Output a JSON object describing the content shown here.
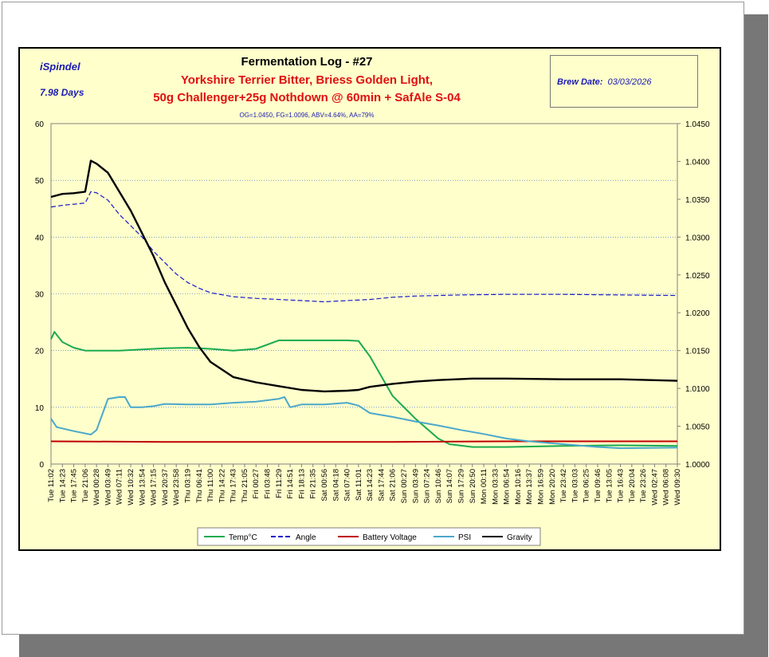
{
  "header": {
    "device": "iSpindel",
    "duration": "7.98 Days",
    "log_title": "Fermentation Log - #27",
    "beer_line1": "Yorkshire Terrier Bitter, Briess Golden Light,",
    "beer_line2": "50g Challenger+25g Nothdown @ 60min + SafAle S-04",
    "stats": "OG=1.0450,  FG=1.0096,  ABV=4.64%,  AA=79%",
    "brew_date_label": "Brew Date:",
    "brew_date_value": "03/03/2026"
  },
  "chart_data": {
    "type": "line",
    "x_labels": [
      "Tue 11:02",
      "Tue 14:23",
      "Tue 17:45",
      "Tue 21:06",
      "Wed 00:28",
      "Wed 03:49",
      "Wed 07:11",
      "Wed 10:32",
      "Wed 13:54",
      "Wed 17:15",
      "Wed 20:37",
      "Wed 23:58",
      "Thu 03:19",
      "Thu 06:41",
      "Thu 11:00",
      "Thu 14:22",
      "Thu 17:43",
      "Thu 21:05",
      "Fri 00:27",
      "Fri 03:48",
      "Fri 11:29",
      "Fri 14:51",
      "Fri 18:13",
      "Fri 21:35",
      "Sat 00:56",
      "Sat 04:18",
      "Sat 07:40",
      "Sat 11:01",
      "Sat 14:23",
      "Sat 17:44",
      "Sat 21:06",
      "Sun 00:27",
      "Sun 03:49",
      "Sun 07:24",
      "Sun 10:46",
      "Sun 14:07",
      "Sun 17:29",
      "Sun 20:50",
      "Mon 00:11",
      "Mon 03:33",
      "Mon 06:54",
      "Mon 10:16",
      "Mon 13:37",
      "Mon 16:59",
      "Mon 20:20",
      "Tue 23:42",
      "Tue 03:03",
      "Tue 06:25",
      "Tue 09:46",
      "Tue 13:05",
      "Tue 16:43",
      "Tue 20:04",
      "Tue 23:26",
      "Wed 02:47",
      "Wed 06:08",
      "Wed 09:30"
    ],
    "y_left": {
      "min": 0,
      "max": 60,
      "ticks": [
        0,
        10,
        20,
        30,
        40,
        50,
        60
      ]
    },
    "y_right": {
      "min": 1.0,
      "max": 1.045,
      "ticks": [
        "1.0000",
        "1.0050",
        "1.0100",
        "1.0150",
        "1.0200",
        "1.0250",
        "1.0300",
        "1.0350",
        "1.0400",
        "1.0450"
      ]
    },
    "grid": "horizontal dotted",
    "legend_position": "bottom",
    "series": [
      {
        "name": "Temp°C",
        "axis": "left",
        "color": "#1aaa50",
        "style": "solid",
        "points": [
          [
            0,
            22
          ],
          [
            0.3,
            23.3
          ],
          [
            1,
            21.5
          ],
          [
            2,
            20.5
          ],
          [
            3,
            20
          ],
          [
            5,
            20
          ],
          [
            6,
            20
          ],
          [
            8,
            20.2
          ],
          [
            10,
            20.4
          ],
          [
            12,
            20.5
          ],
          [
            14,
            20.3
          ],
          [
            16,
            20
          ],
          [
            18,
            20.3
          ],
          [
            20,
            21.8
          ],
          [
            22,
            21.8
          ],
          [
            24,
            21.8
          ],
          [
            26,
            21.8
          ],
          [
            27,
            21.7
          ],
          [
            28,
            19
          ],
          [
            29,
            15.5
          ],
          [
            30,
            12
          ],
          [
            32,
            8
          ],
          [
            34,
            4.5
          ],
          [
            35,
            3.5
          ],
          [
            37,
            3
          ],
          [
            40,
            3
          ],
          [
            45,
            3.2
          ],
          [
            50,
            3.3
          ],
          [
            55,
            3.2
          ]
        ]
      },
      {
        "name": "Angle",
        "axis": "left",
        "color": "#1a1acc",
        "style": "dashed",
        "points": [
          [
            0,
            45.3
          ],
          [
            1,
            45.6
          ],
          [
            2,
            45.8
          ],
          [
            3,
            46
          ],
          [
            3.5,
            48
          ],
          [
            4,
            47.8
          ],
          [
            5,
            46.5
          ],
          [
            6,
            44
          ],
          [
            7,
            42
          ],
          [
            8,
            40
          ],
          [
            9,
            37.5
          ],
          [
            10,
            35.5
          ],
          [
            11,
            33.5
          ],
          [
            12,
            32
          ],
          [
            13,
            31
          ],
          [
            14,
            30.2
          ],
          [
            16,
            29.5
          ],
          [
            18,
            29.2
          ],
          [
            20,
            29
          ],
          [
            22,
            28.8
          ],
          [
            24,
            28.6
          ],
          [
            26,
            28.8
          ],
          [
            28,
            29
          ],
          [
            30,
            29.4
          ],
          [
            32,
            29.6
          ],
          [
            36,
            29.8
          ],
          [
            40,
            29.9
          ],
          [
            45,
            29.9
          ],
          [
            50,
            29.8
          ],
          [
            55,
            29.7
          ]
        ]
      },
      {
        "name": "Battery Voltage",
        "axis": "left",
        "color": "#c00000",
        "style": "solid",
        "points": [
          [
            0,
            4
          ],
          [
            10,
            3.9
          ],
          [
            20,
            3.9
          ],
          [
            30,
            3.9
          ],
          [
            40,
            4
          ],
          [
            50,
            4
          ],
          [
            55,
            4
          ]
        ]
      },
      {
        "name": "PSI",
        "axis": "left",
        "color": "#4aa8cc",
        "style": "solid",
        "points": [
          [
            0,
            8
          ],
          [
            0.5,
            6.5
          ],
          [
            2,
            5.8
          ],
          [
            3.5,
            5.2
          ],
          [
            4,
            6
          ],
          [
            5,
            11.5
          ],
          [
            6,
            11.8
          ],
          [
            6.5,
            11.8
          ],
          [
            7,
            10
          ],
          [
            8,
            10
          ],
          [
            9,
            10.2
          ],
          [
            10,
            10.6
          ],
          [
            12,
            10.5
          ],
          [
            14,
            10.5
          ],
          [
            16,
            10.8
          ],
          [
            18,
            11
          ],
          [
            20,
            11.5
          ],
          [
            20.5,
            11.8
          ],
          [
            21,
            10
          ],
          [
            22,
            10.5
          ],
          [
            24,
            10.5
          ],
          [
            26,
            10.8
          ],
          [
            27,
            10.3
          ],
          [
            28,
            9
          ],
          [
            30,
            8.3
          ],
          [
            32,
            7.5
          ],
          [
            34,
            6.8
          ],
          [
            36,
            6
          ],
          [
            38,
            5.3
          ],
          [
            40,
            4.5
          ],
          [
            42,
            4
          ],
          [
            45,
            3.5
          ],
          [
            48,
            3
          ],
          [
            50,
            2.8
          ],
          [
            55,
            2.9
          ]
        ]
      },
      {
        "name": "Gravity",
        "axis": "right",
        "color": "#000000",
        "style": "solid",
        "points": [
          [
            0,
            1.0353
          ],
          [
            1,
            1.0357
          ],
          [
            2,
            1.0358
          ],
          [
            3,
            1.036
          ],
          [
            3.5,
            1.0401
          ],
          [
            4,
            1.0397
          ],
          [
            5,
            1.0385
          ],
          [
            6,
            1.036
          ],
          [
            7,
            1.0335
          ],
          [
            8,
            1.0305
          ],
          [
            9,
            1.0275
          ],
          [
            10,
            1.024
          ],
          [
            11,
            1.021
          ],
          [
            12,
            1.018
          ],
          [
            13,
            1.0155
          ],
          [
            14,
            1.0135
          ],
          [
            15,
            1.0125
          ],
          [
            16,
            1.0115
          ],
          [
            18,
            1.0108
          ],
          [
            20,
            1.0103
          ],
          [
            22,
            1.0098
          ],
          [
            24,
            1.0096
          ],
          [
            26,
            1.0097
          ],
          [
            27,
            1.0098
          ],
          [
            28,
            1.0102
          ],
          [
            30,
            1.0106
          ],
          [
            32,
            1.0109
          ],
          [
            34,
            1.0111
          ],
          [
            37,
            1.0113
          ],
          [
            40,
            1.0113
          ],
          [
            45,
            1.0112
          ],
          [
            50,
            1.0112
          ],
          [
            55,
            1.011
          ]
        ]
      }
    ]
  }
}
